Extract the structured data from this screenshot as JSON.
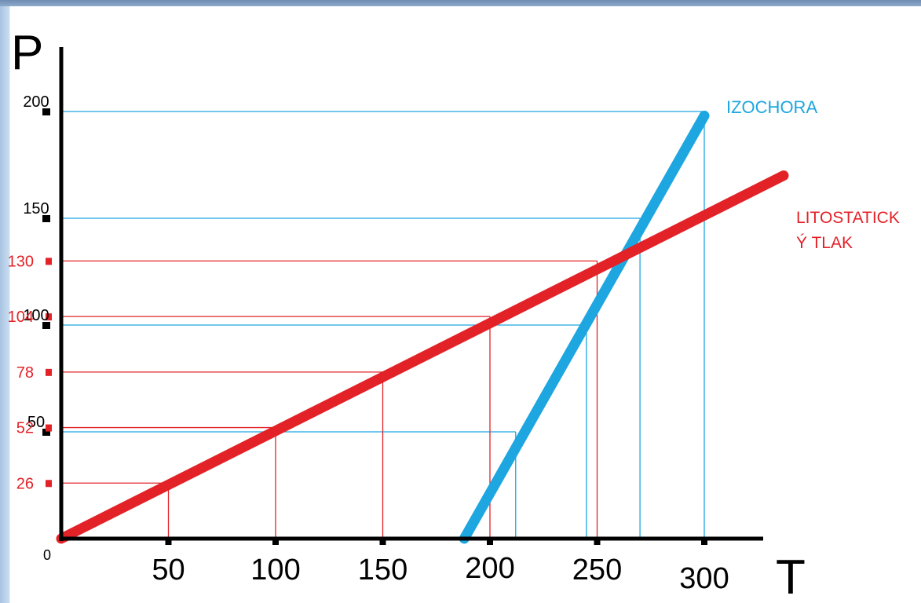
{
  "chart_data": {
    "type": "line",
    "ylabel": "P",
    "xlabel": "T",
    "x_ticks": [
      50,
      100,
      150,
      200,
      250,
      300
    ],
    "y_ticks_black": [
      50,
      100,
      150,
      200
    ],
    "y_ticks_red": [
      26,
      52,
      78,
      104,
      130
    ],
    "origin_label": "0",
    "xlim": [
      0,
      325
    ],
    "ylim": [
      0,
      200
    ],
    "series": [
      {
        "name": "IZOCHORA",
        "color": "#1ea6e0",
        "x": [
          188,
          300
        ],
        "y": [
          0,
          198
        ]
      },
      {
        "name": "LITOSTATICKÝ TLAK",
        "label_lines": [
          "LITOSTATICK",
          "Ý TLAK"
        ],
        "color": "#e32228",
        "x": [
          0,
          337
        ],
        "y": [
          0,
          170
        ]
      }
    ],
    "red_guides": [
      [
        50,
        26
      ],
      [
        100,
        52
      ],
      [
        150,
        78
      ],
      [
        200,
        104
      ],
      [
        250,
        130
      ]
    ],
    "blue_guides": [
      [
        212,
        50
      ],
      [
        245,
        100
      ],
      [
        270,
        150
      ],
      [
        300,
        200
      ]
    ],
    "grid": false
  }
}
